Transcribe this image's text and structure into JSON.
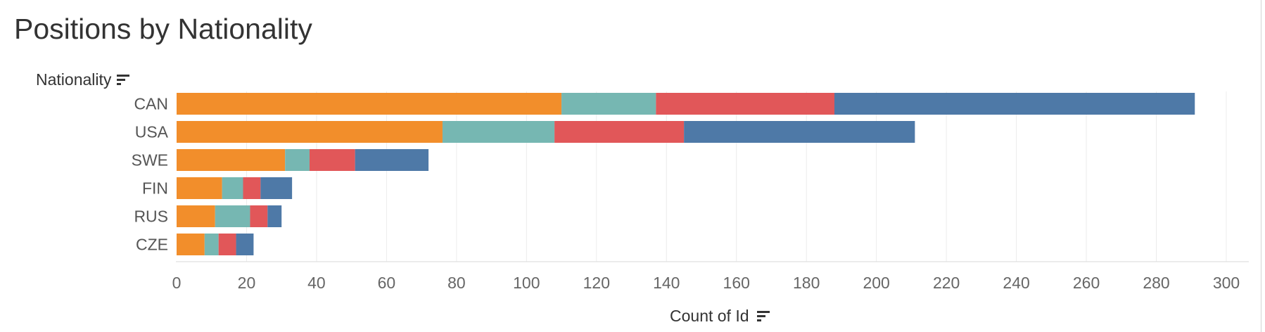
{
  "title": "Positions by Nationality",
  "row_header": "Nationality",
  "axis_title": "Count of Id",
  "colors": [
    "#f28e2b",
    "#76b7b2",
    "#e15759",
    "#4e79a7"
  ],
  "chart_data": {
    "type": "bar",
    "orientation": "horizontal",
    "stacked": true,
    "title": "Positions by Nationality",
    "xlabel": "Count of Id",
    "ylabel": "Nationality",
    "xlim": [
      0,
      300
    ],
    "xticks": [
      0,
      20,
      40,
      60,
      80,
      100,
      120,
      140,
      160,
      180,
      200,
      220,
      240,
      260,
      280,
      300
    ],
    "grid": true,
    "categories": [
      "CAN",
      "USA",
      "SWE",
      "FIN",
      "RUS",
      "CZE"
    ],
    "series": [
      {
        "color": "#f28e2b",
        "values": [
          110,
          76,
          31,
          13,
          11,
          8
        ]
      },
      {
        "color": "#76b7b2",
        "values": [
          27,
          32,
          7,
          6,
          10,
          4
        ]
      },
      {
        "color": "#e15759",
        "values": [
          51,
          37,
          13,
          5,
          5,
          5
        ]
      },
      {
        "color": "#4e79a7",
        "values": [
          103,
          66,
          21,
          9,
          4,
          5
        ]
      }
    ]
  }
}
